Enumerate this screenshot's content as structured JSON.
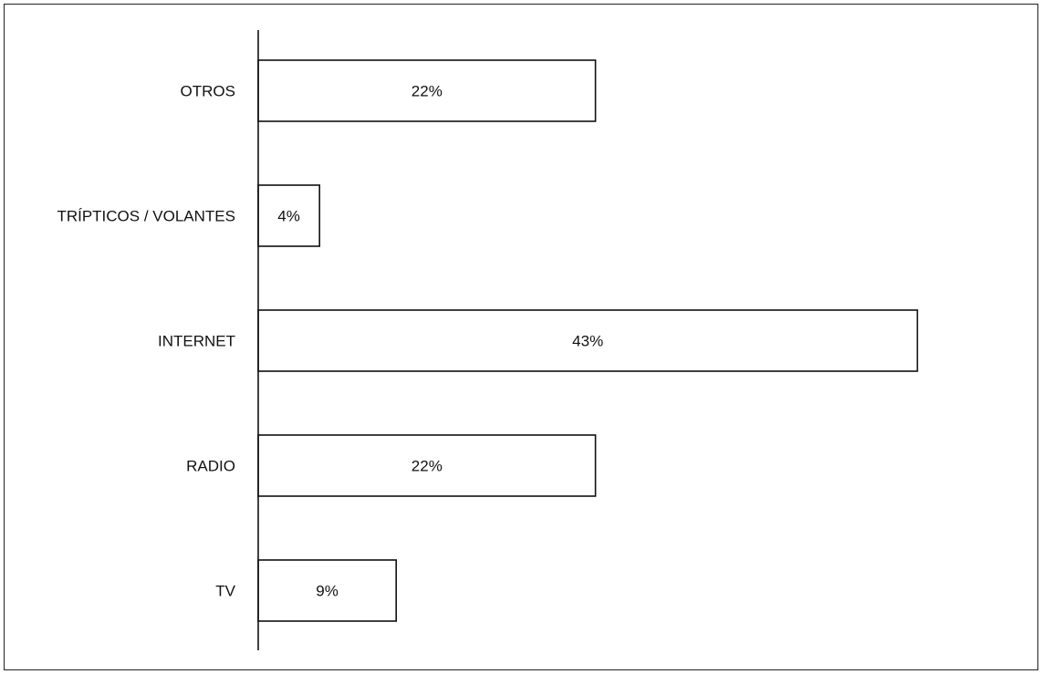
{
  "chart_data": {
    "type": "bar",
    "orientation": "horizontal",
    "categories": [
      "OTROS",
      "TRÍPTICOS / VOLANTES",
      "INTERNET",
      "RADIO",
      "TV"
    ],
    "values": [
      22,
      4,
      43,
      22,
      9
    ],
    "data_labels": [
      "22%",
      "4%",
      "43%",
      "22%",
      "9%"
    ],
    "title": "",
    "xlabel": "",
    "ylabel": "",
    "unit": "%",
    "grid": false,
    "legend": "none",
    "colors": {
      "bar_fill": "#ffffff",
      "bar_stroke": "#111111"
    }
  }
}
